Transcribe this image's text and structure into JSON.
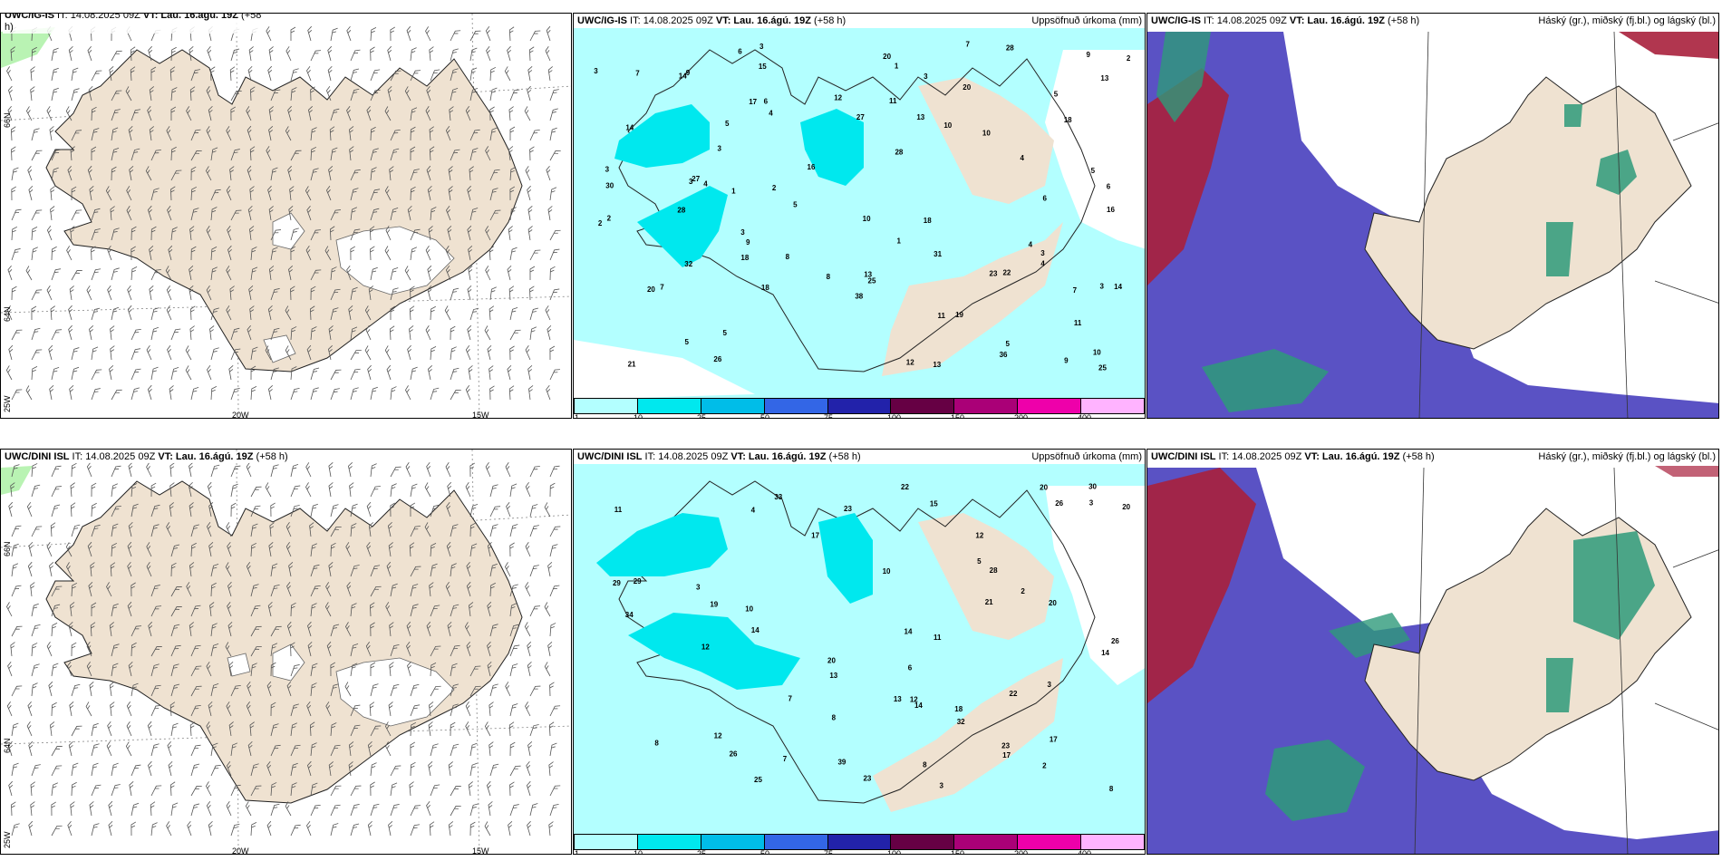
{
  "panels": {
    "top_left": {
      "title_model": "UWC/IG-IS",
      "title_rest": " IT: 14.08.2025 09Z ",
      "title_vt": "VT: Lau. 16.ágú. 19Z",
      "title_lead": " (+58",
      "title_wrap": "h)",
      "right_label": ""
    },
    "top_mid": {
      "title_model": "UWC/IG-IS",
      "title_rest": " IT: 14.08.2025 09Z ",
      "title_vt": "VT: Lau. 16.ágú. 19Z",
      "title_lead": " (+58 h)",
      "right_label": "Uppsöfnuð úrkoma (mm)"
    },
    "top_right": {
      "title_model": "UWC/IG-IS",
      "title_rest": " IT: 14.08.2025 09Z ",
      "title_vt": "VT: Lau. 16.ágú. 19Z",
      "title_lead": " (+58 h)",
      "right_label": "Háský (gr.), miðský (fj.bl.) og lágský (bl.)"
    },
    "bot_left": {
      "title_model": "UWC/DINI ISL",
      "title_rest": " IT: 14.08.2025 09Z ",
      "title_vt": "VT: Lau. 16.ágú. 19Z",
      "title_lead": " (+58 h)",
      "right_label": ""
    },
    "bot_mid": {
      "title_model": "UWC/DINI ISL",
      "title_rest": " IT: 14.08.2025 09Z ",
      "title_vt": "VT: Lau. 16.ágú. 19Z",
      "title_lead": " (+58 h)",
      "right_label": "Uppsöfnuð úrkoma (mm)"
    },
    "bot_right": {
      "title_model": "UWC/DINI ISL",
      "title_rest": " IT: 14.08.2025 09Z ",
      "title_vt": "VT: Lau. 16.ágú. 19Z",
      "title_lead": " (+58 h)",
      "right_label": "Háský (gr.), miðský (fj.bl.) og lágský (bl.)"
    }
  },
  "axes": {
    "lat_66": "66N",
    "lat_64": "64N",
    "lat_25": "25W",
    "lon_20": "20W",
    "lon_15": "15W"
  },
  "colorbar": {
    "ticks": [
      "1",
      "10",
      "25",
      "50",
      "75",
      "100",
      "150",
      "200",
      "400"
    ],
    "colors": [
      "#b3ffff",
      "#00e8ee",
      "#00bde8",
      "#3366e6",
      "#2222aa",
      "#660044",
      "#aa0077",
      "#ee00aa",
      "#ffb3ff"
    ]
  },
  "colors": {
    "land": "#efe2d1",
    "sea": "#ffffff",
    "precip_light": "#b3ffff",
    "precip_mid": "#00e8ee",
    "cloud_low": "#5a52c4",
    "cloud_mid": "#2e9a7a",
    "cloud_high": "#a8203c",
    "green_shading": "#a8f0a0"
  },
  "precip_labels_top": [
    "4",
    "5",
    "10",
    "6",
    "5",
    "3",
    "8",
    "7",
    "7",
    "5",
    "3",
    "3",
    "4",
    "18",
    "20",
    "10",
    "3",
    "3",
    "3",
    "12",
    "10",
    "11",
    "5",
    "32",
    "28",
    "28",
    "21",
    "19",
    "12",
    "13",
    "26",
    "25",
    "28",
    "20",
    "27",
    "30",
    "16",
    "31",
    "18",
    "4",
    "13",
    "14",
    "8",
    "25",
    "11",
    "14",
    "13",
    "10",
    "6",
    "5",
    "9",
    "5",
    "36",
    "20",
    "18",
    "38",
    "27",
    "23",
    "22",
    "18",
    "14",
    "9",
    "16",
    "15",
    "17",
    "9",
    "7",
    "4",
    "6",
    "3",
    "3",
    "2",
    "1",
    "2",
    "5",
    "2",
    "1",
    "6",
    "3",
    "2",
    "1",
    "7",
    "11",
    "9",
    "13",
    "4"
  ],
  "precip_labels_bot": [
    "3",
    "4",
    "12",
    "3",
    "2",
    "8",
    "14",
    "14",
    "13",
    "26",
    "8",
    "29",
    "20",
    "12",
    "21",
    "20",
    "34",
    "26",
    "22",
    "20",
    "23",
    "14",
    "25",
    "17",
    "11",
    "28",
    "12",
    "19",
    "23",
    "17",
    "32",
    "30",
    "12",
    "7",
    "33",
    "39",
    "22",
    "29",
    "26",
    "18",
    "23",
    "14",
    "20",
    "17",
    "15",
    "3",
    "13",
    "8",
    "6",
    "3",
    "7",
    "10",
    "10",
    "5",
    "11",
    "8",
    "2"
  ]
}
